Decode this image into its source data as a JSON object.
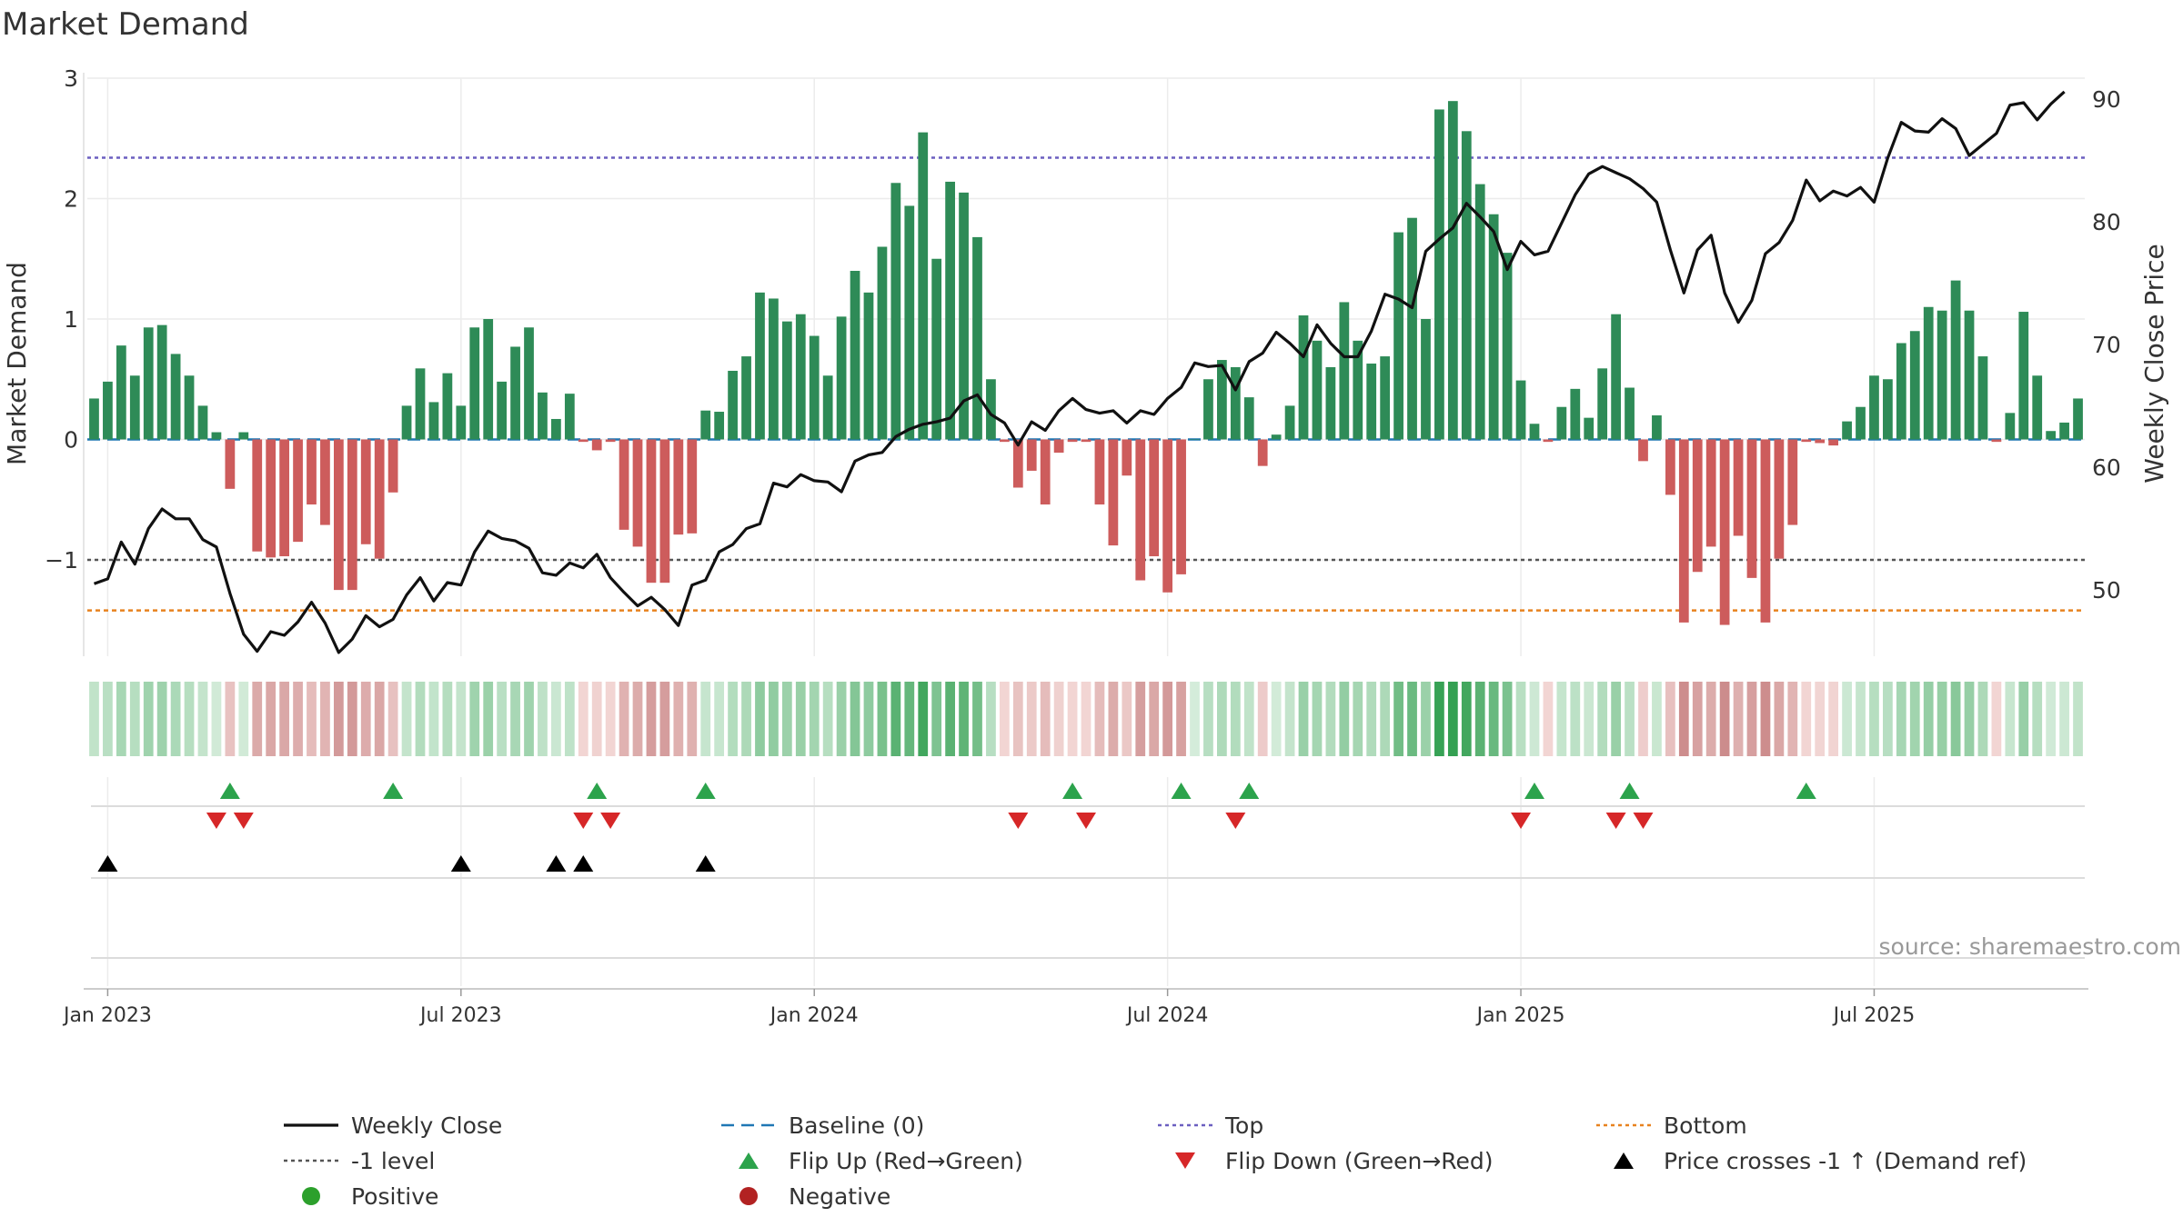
{
  "chart_data": {
    "type": "bar",
    "title": "Market Demand",
    "source": "source: sharemaestro.com",
    "left_axis": {
      "label": "Market Demand",
      "range": [
        -1.8,
        3.0
      ],
      "ticks": [
        3,
        2,
        1,
        0,
        -1
      ],
      "tick_labels": [
        "3",
        "2",
        "1",
        "0",
        "−1"
      ]
    },
    "right_axis": {
      "label": "Weekly Close Price",
      "range": [
        44.6,
        91.7
      ],
      "ticks": [
        90,
        80,
        70,
        60,
        50
      ],
      "tick_labels": [
        "90",
        "80",
        "70",
        "60",
        "50"
      ]
    },
    "x_ticks": [
      "Jan 2023",
      "Jul 2023",
      "Jan 2024",
      "Jul 2024",
      "Jan 2025",
      "Jul 2025"
    ],
    "x_tick_weeks": [
      1.5,
      27.5,
      53.5,
      79.5,
      105.5,
      131.5
    ],
    "reference_lines": {
      "top": 2.34,
      "minus_one": -1.0,
      "bottom": -1.42
    },
    "demand": [
      0.34,
      0.48,
      0.78,
      0.53,
      0.93,
      0.95,
      0.71,
      0.53,
      0.28,
      0.06,
      -0.41,
      0.06,
      -0.93,
      -0.98,
      -0.97,
      -0.85,
      -0.54,
      -0.71,
      -1.25,
      -1.25,
      -0.87,
      -0.99,
      -0.44,
      0.28,
      0.59,
      0.31,
      0.55,
      0.28,
      0.93,
      1.0,
      0.48,
      0.77,
      0.93,
      0.39,
      0.17,
      0.38,
      -0.02,
      -0.09,
      -0.02,
      -0.75,
      -0.89,
      -1.19,
      -1.19,
      -0.79,
      -0.78,
      0.24,
      0.23,
      0.57,
      0.69,
      1.22,
      1.17,
      0.98,
      1.04,
      0.86,
      0.53,
      1.02,
      1.4,
      1.22,
      1.6,
      2.13,
      1.94,
      2.55,
      1.5,
      2.14,
      2.05,
      1.68,
      0.5,
      -0.02,
      -0.4,
      -0.26,
      -0.54,
      -0.11,
      -0.02,
      -0.02,
      -0.54,
      -0.88,
      -0.3,
      -1.17,
      -0.97,
      -1.27,
      -1.12,
      0.0,
      0.5,
      0.66,
      0.6,
      0.35,
      -0.22,
      0.04,
      0.28,
      1.03,
      0.82,
      0.6,
      1.14,
      0.82,
      0.63,
      0.69,
      1.72,
      1.84,
      1.0,
      2.74,
      2.81,
      2.56,
      2.12,
      1.87,
      1.55,
      0.49,
      0.13,
      -0.02,
      0.27,
      0.42,
      0.18,
      0.59,
      1.04,
      0.43,
      -0.18,
      0.2,
      -0.46,
      -1.52,
      -1.1,
      -0.89,
      -1.54,
      -0.8,
      -1.15,
      -1.52,
      -0.99,
      -0.71,
      -0.02,
      -0.03,
      -0.05,
      0.15,
      0.27,
      0.53,
      0.5,
      0.8,
      0.9,
      1.1,
      1.07,
      1.32,
      1.07,
      0.69,
      -0.02,
      0.22,
      1.06,
      0.53,
      0.07,
      0.14,
      0.34
    ],
    "weekly_close": [
      50.5,
      50.9,
      53.9,
      52.1,
      55.0,
      56.6,
      55.8,
      55.8,
      54.1,
      53.5,
      49.7,
      46.4,
      45.0,
      46.6,
      46.3,
      47.4,
      49.0,
      47.3,
      44.9,
      46.0,
      47.9,
      47.0,
      47.6,
      49.6,
      51.0,
      49.1,
      50.6,
      50.4,
      53.1,
      54.8,
      54.2,
      54.0,
      53.4,
      51.4,
      51.2,
      52.2,
      51.8,
      52.9,
      51.0,
      49.8,
      48.7,
      49.4,
      48.4,
      47.1,
      50.4,
      50.8,
      53.1,
      53.7,
      55.0,
      55.4,
      58.7,
      58.4,
      59.4,
      58.9,
      58.8,
      58.0,
      60.5,
      61.0,
      61.2,
      62.5,
      63.1,
      63.5,
      63.7,
      64.0,
      65.4,
      65.9,
      64.3,
      63.6,
      61.8,
      63.7,
      63.0,
      64.6,
      65.6,
      64.7,
      64.4,
      64.6,
      63.6,
      64.6,
      64.3,
      65.6,
      66.5,
      68.5,
      68.2,
      68.3,
      66.3,
      68.6,
      69.3,
      71.0,
      70.1,
      69.0,
      71.6,
      70.1,
      69.0,
      69.0,
      71.1,
      74.1,
      73.7,
      73.0,
      77.6,
      78.6,
      79.5,
      81.5,
      80.4,
      79.2,
      76.1,
      78.4,
      77.3,
      77.6,
      79.9,
      82.2,
      83.9,
      84.5,
      84.0,
      83.5,
      82.7,
      81.6,
      77.7,
      74.2,
      77.7,
      78.9,
      74.2,
      71.8,
      73.6,
      77.4,
      78.3,
      80.1,
      83.4,
      81.7,
      82.5,
      82.1,
      82.8,
      81.6,
      85.2,
      88.1,
      87.4,
      87.3,
      88.4,
      87.6,
      85.4,
      86.3,
      87.2,
      89.5,
      89.7,
      88.3,
      89.6,
      90.6
    ],
    "legend": [
      {
        "label": "Weekly Close",
        "color": "#111111"
      },
      {
        "label": "Baseline (0)",
        "color": "#1f77b4"
      },
      {
        "label": "Top",
        "color": "#6b5fc0"
      },
      {
        "label": "Bottom",
        "color": "#e8821e"
      },
      {
        "label": "-1 level",
        "color": "#555555"
      },
      {
        "label": "Flip Up (Red→Green)",
        "color": "#2ca34c"
      },
      {
        "label": "Flip Down (Green→Red)",
        "color": "#d62728"
      },
      {
        "label": "Price crosses -1 ↑ (Demand ref)",
        "color": "#000000"
      },
      {
        "label": "Positive",
        "color": "#2ca02c"
      },
      {
        "label": "Negative",
        "color": "#b22222"
      }
    ],
    "flip_up_weeks": [
      10,
      22,
      37,
      45,
      72,
      80,
      85,
      106,
      113,
      126
    ],
    "flip_down_weeks": [
      9,
      11,
      36,
      38,
      68,
      73,
      84,
      105,
      112,
      114
    ],
    "price_cross_weeks": [
      1,
      27,
      34,
      36,
      45
    ],
    "colors": {
      "positive_bar": "#2e8b57",
      "negative_bar": "#cd5c5c",
      "close_line": "#111111"
    }
  }
}
